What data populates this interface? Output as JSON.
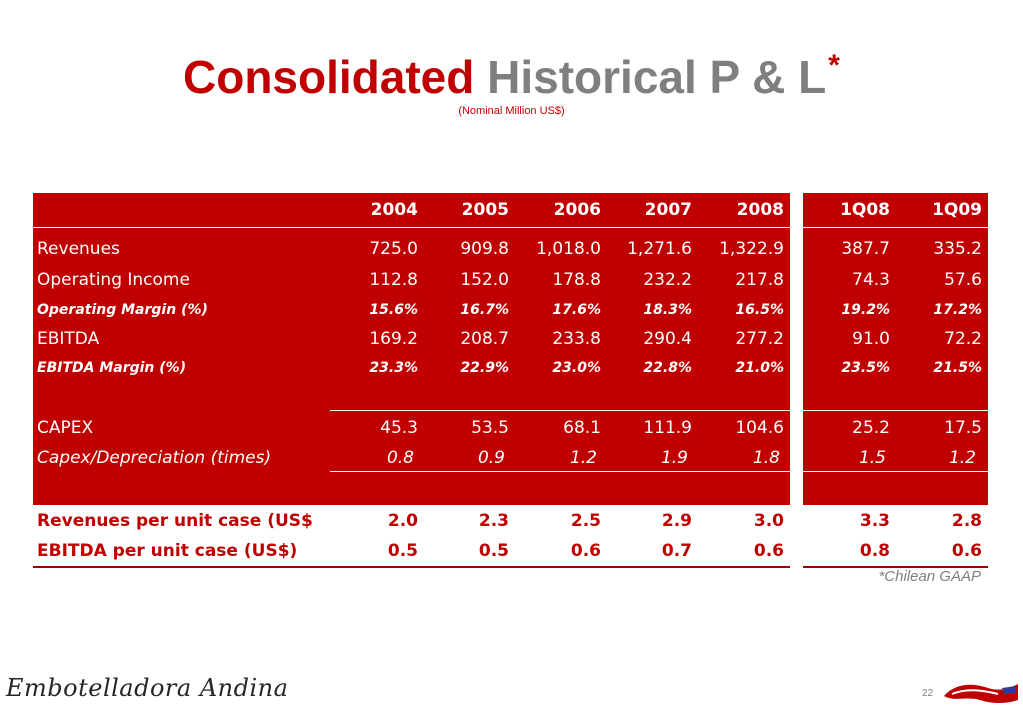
{
  "title": {
    "word_red": "Consolidated",
    "word_gray": "Historical P & L",
    "asterisk": "*"
  },
  "subtitle": "(Nominal Million US$)",
  "table": {
    "columns": [
      "2004",
      "2005",
      "2006",
      "2007",
      "2008",
      "1Q08",
      "1Q09"
    ],
    "rows": [
      {
        "label": "Revenues",
        "values": [
          "725.0",
          "909.8",
          "1,018.0",
          "1,271.6",
          "1,322.9",
          "387.7",
          "335.2"
        ]
      },
      {
        "label": "Operating Income",
        "values": [
          "112.8",
          "152.0",
          "178.8",
          "232.2",
          "217.8",
          "74.3",
          "57.6"
        ]
      },
      {
        "label": "Operating Margin (%)",
        "values": [
          "15.6%",
          "16.7%",
          "17.6%",
          "18.3%",
          "16.5%",
          "19.2%",
          "17.2%"
        ]
      },
      {
        "label": "EBITDA",
        "values": [
          "169.2",
          "208.7",
          "233.8",
          "290.4",
          "277.2",
          "91.0",
          "72.2"
        ]
      },
      {
        "label": "EBITDA Margin (%)",
        "values": [
          "23.3%",
          "22.9%",
          "23.0%",
          "22.8%",
          "21.0%",
          "23.5%",
          "21.5%"
        ]
      },
      {
        "label": "CAPEX",
        "values": [
          "45.3",
          "53.5",
          "68.1",
          "111.9",
          "104.6",
          "25.2",
          "17.5"
        ]
      },
      {
        "label": "Capex/Depreciation (times)",
        "values": [
          "0.8",
          "0.9",
          "1.2",
          "1.9",
          "1.8",
          "1.5",
          "1.2"
        ]
      },
      {
        "label": "Revenues per unit case (US$",
        "values": [
          "2.0",
          "2.3",
          "2.5",
          "2.9",
          "3.0",
          "3.3",
          "2.8"
        ]
      },
      {
        "label": "EBITDA per unit case (US$)",
        "values": [
          "0.5",
          "0.5",
          "0.6",
          "0.7",
          "0.6",
          "0.8",
          "0.6"
        ]
      }
    ]
  },
  "footnote": "*Chilean GAAP",
  "company_logo": "Embotelladora Andina",
  "page_number": "22",
  "colors": {
    "accent_red": "#c00000",
    "title_gray": "#7f7f7f"
  }
}
